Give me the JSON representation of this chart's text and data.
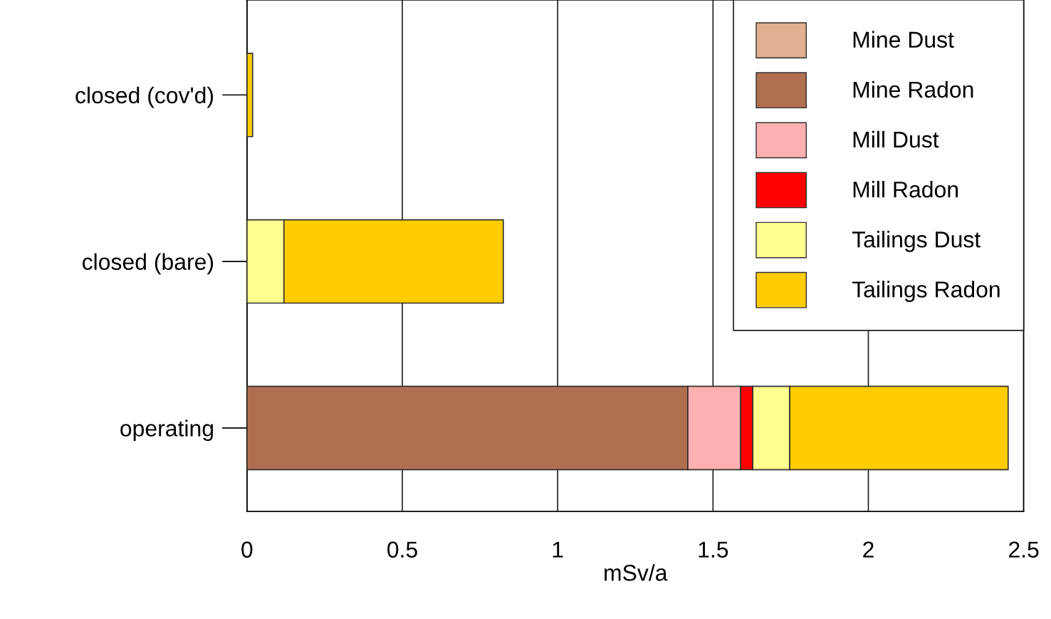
{
  "chart_data": {
    "type": "bar",
    "orientation": "horizontal",
    "stacked": true,
    "xlabel": "mSv/a",
    "categories": [
      "closed (cov'd)",
      "closed (bare)",
      "operating"
    ],
    "series": [
      {
        "name": "Mine Dust",
        "color": "#e0b090",
        "values": [
          0,
          0,
          null
        ]
      },
      {
        "name": "Mine Radon",
        "color": "#b07050",
        "values": [
          0,
          0,
          1.419
        ]
      },
      {
        "name": "Mill Dust",
        "color": "#ffb0b0",
        "values": [
          0,
          0,
          0.17
        ]
      },
      {
        "name": "Mill Radon",
        "color": "#ff0000",
        "values": [
          0,
          0,
          0.039
        ]
      },
      {
        "name": "Tailings Dust",
        "color": "#ffff90",
        "values": [
          0,
          0.119,
          0.119
        ]
      },
      {
        "name": "Tailings Radon",
        "color": "#ffcc00",
        "values": [
          0.018,
          0.706,
          0.703
        ]
      }
    ],
    "xlim": [
      0,
      2.5
    ],
    "xticks": [
      0,
      0.5,
      1,
      1.5,
      2,
      2.5
    ],
    "grid": "x",
    "legend": "top right"
  }
}
